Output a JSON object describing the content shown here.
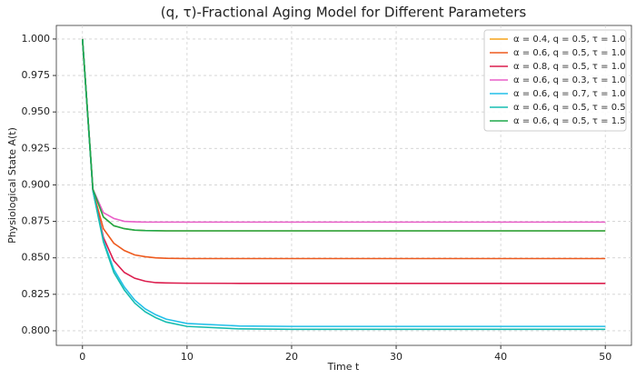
{
  "chart_data": {
    "type": "line",
    "title": "(q, τ)-Fractional Aging Model for Different Parameters",
    "x_label": "Time t",
    "y_label": "Physiological State A(t)",
    "x": [
      0,
      1,
      2,
      3,
      4,
      5,
      6,
      7,
      8,
      10,
      15,
      20,
      30,
      40,
      50
    ],
    "series": [
      {
        "name": "α = 0.4, q = 0.5, τ = 1.0",
        "color": "#f5a31a",
        "values": [
          1.0,
          0.897,
          0.878,
          0.872,
          0.87,
          0.869,
          0.8687,
          0.8686,
          0.8685,
          0.8685,
          0.8685,
          0.8685,
          0.8685,
          0.8685,
          0.8685
        ]
      },
      {
        "name": "α = 0.6, q = 0.5, τ = 1.0",
        "color": "#ee5a1e",
        "values": [
          1.0,
          0.896,
          0.87,
          0.86,
          0.855,
          0.852,
          0.8508,
          0.85,
          0.8497,
          0.8495,
          0.8495,
          0.8495,
          0.8495,
          0.8495,
          0.8495
        ]
      },
      {
        "name": "α = 0.8, q = 0.5, τ = 1.0",
        "color": "#dc1e4e",
        "values": [
          1.0,
          0.896,
          0.864,
          0.848,
          0.84,
          0.836,
          0.834,
          0.833,
          0.8328,
          0.8326,
          0.8325,
          0.8325,
          0.8325,
          0.8325,
          0.8325
        ]
      },
      {
        "name": "α = 0.6, q = 0.3, τ = 1.0",
        "color": "#e95fc8",
        "values": [
          1.0,
          0.897,
          0.881,
          0.877,
          0.875,
          0.8747,
          0.8745,
          0.8745,
          0.8745,
          0.8745,
          0.8745,
          0.8745,
          0.8745,
          0.8745,
          0.8745
        ]
      },
      {
        "name": "α = 0.6, q = 0.7, τ = 1.0",
        "color": "#22bfe8",
        "values": [
          1.0,
          0.896,
          0.862,
          0.842,
          0.83,
          0.821,
          0.815,
          0.811,
          0.808,
          0.805,
          0.8033,
          0.803,
          0.803,
          0.803,
          0.803
        ]
      },
      {
        "name": "α = 0.6, q = 0.5, τ = 0.5",
        "color": "#17bdb0",
        "values": [
          1.0,
          0.896,
          0.861,
          0.84,
          0.828,
          0.819,
          0.813,
          0.809,
          0.806,
          0.803,
          0.8013,
          0.801,
          0.801,
          0.801,
          0.801
        ]
      },
      {
        "name": "α = 0.6, q = 0.5, τ = 1.5",
        "color": "#1fa84a",
        "values": [
          1.0,
          0.897,
          0.878,
          0.872,
          0.87,
          0.869,
          0.8687,
          0.8686,
          0.8685,
          0.8685,
          0.8685,
          0.8685,
          0.8685,
          0.8685,
          0.8685
        ]
      }
    ],
    "xlim": [
      -2.5,
      52.5
    ],
    "xticks": [
      0,
      10,
      20,
      30,
      40,
      50
    ],
    "ylim": [
      0.79,
      1.0093
    ],
    "yticks": [
      {
        "value": 0.8,
        "label": "0.800"
      },
      {
        "value": 0.825,
        "label": "0.825"
      },
      {
        "value": 0.85,
        "label": "0.850"
      },
      {
        "value": 0.875,
        "label": "0.875"
      },
      {
        "value": 0.9,
        "label": "0.900"
      },
      {
        "value": 0.925,
        "label": "0.925"
      },
      {
        "value": 0.95,
        "label": "0.950"
      },
      {
        "value": 0.975,
        "label": "0.975"
      },
      {
        "value": 1.0,
        "label": "1.000"
      }
    ],
    "grid": true,
    "legend": "upper right"
  }
}
